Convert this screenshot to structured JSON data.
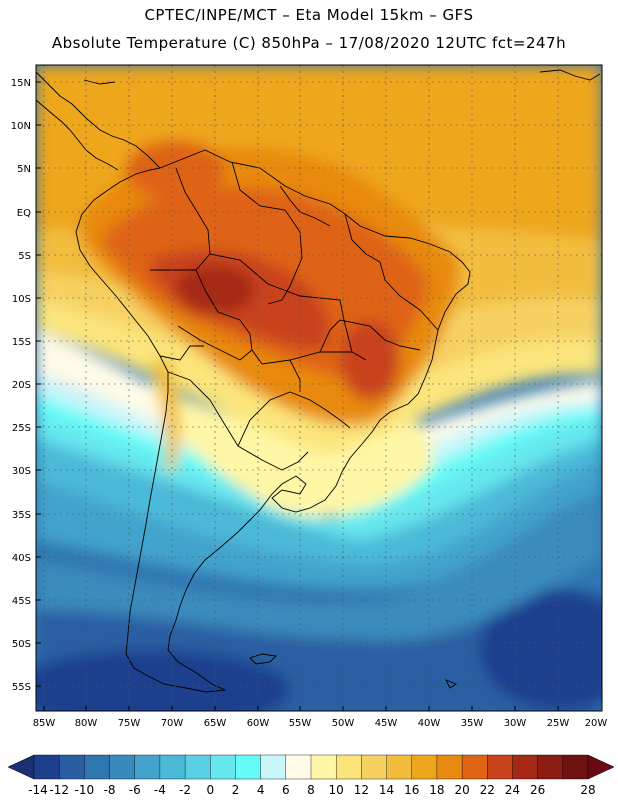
{
  "header": {
    "line1": "CPTEC/INPE/MCT –  Eta Model 15km – GFS",
    "line2": "Absolute Temperature (C) 850hPa – 17/08/2020 12UTC fct=247h"
  },
  "map": {
    "lat_labels": [
      "15N",
      "10N",
      "5N",
      "EQ",
      "5S",
      "10S",
      "15S",
      "20S",
      "25S",
      "30S",
      "35S",
      "40S",
      "45S",
      "50S",
      "55S"
    ],
    "lon_labels": [
      "85W",
      "80W",
      "75W",
      "70W",
      "65W",
      "60W",
      "55W",
      "50W",
      "45W",
      "40W",
      "35W",
      "30W",
      "25W",
      "20W"
    ],
    "lat_values": [
      15,
      10,
      5,
      0,
      -5,
      -10,
      -15,
      -20,
      -25,
      -30,
      -35,
      -40,
      -45,
      -50,
      -55
    ],
    "lon_values": [
      -85,
      -80,
      -75,
      -70,
      -65,
      -60,
      -55,
      -50,
      -45,
      -40,
      -35,
      -30,
      -25,
      -20
    ]
  },
  "colorbar": {
    "labels": [
      "-14",
      "-12",
      "-10",
      "-8",
      "-6",
      "-4",
      "-2",
      "0",
      "2",
      "4",
      "6",
      "8",
      "10",
      "12",
      "14",
      "16",
      "18",
      "20",
      "22",
      "24",
      "26",
      "28"
    ],
    "colors": [
      "#1e3f8e",
      "#2a5ea3",
      "#2f76b1",
      "#3a8bbd",
      "#43a3cc",
      "#4bbad8",
      "#5ad0e4",
      "#66e6ee",
      "#66fbf7",
      "#c9f6fb",
      "#fffbe8",
      "#fff7a6",
      "#fbe57b",
      "#f6d162",
      "#f2bd3d",
      "#eea61c",
      "#e88a11",
      "#df6414",
      "#c9421b",
      "#a62918",
      "#8a1c14",
      "#6e1211"
    ],
    "left_arrow_color": "#1b2f74",
    "right_arrow_color": "#680914"
  }
}
